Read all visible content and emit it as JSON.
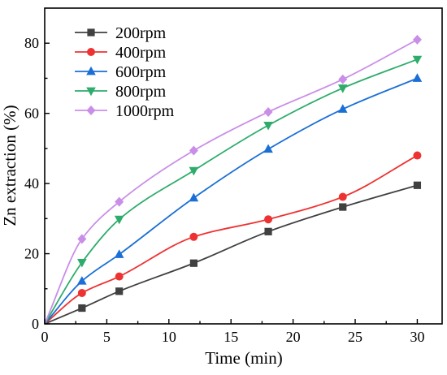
{
  "chart_data": {
    "type": "line",
    "xlabel": "Time (min)",
    "ylabel": "Zn extraction (%)",
    "xlim": [
      0,
      32
    ],
    "ylim": [
      0,
      90
    ],
    "xticks": [
      0,
      5,
      10,
      15,
      20,
      25,
      30
    ],
    "yticks": [
      0,
      20,
      40,
      60,
      80
    ],
    "grid": false,
    "legend_position": "top-left",
    "x": [
      0,
      3,
      6,
      12,
      18,
      24,
      30
    ],
    "series": [
      {
        "name": "200rpm",
        "color": "#404040",
        "marker": "square",
        "values": [
          0,
          4.5,
          9.3,
          17.3,
          26.3,
          33.3,
          39.5
        ]
      },
      {
        "name": "400rpm",
        "color": "#ee3232",
        "marker": "circle",
        "values": [
          0,
          8.8,
          13.5,
          24.8,
          29.8,
          36.2,
          48.0
        ]
      },
      {
        "name": "600rpm",
        "color": "#1a6fd6",
        "marker": "triangle-up",
        "values": [
          0,
          12.2,
          19.8,
          35.9,
          49.8,
          61.2,
          70.0
        ]
      },
      {
        "name": "800rpm",
        "color": "#2eac6b",
        "marker": "triangle-down",
        "values": [
          0,
          17.5,
          29.8,
          43.7,
          56.6,
          67.2,
          75.4
        ]
      },
      {
        "name": "1000rpm",
        "color": "#c98ee8",
        "marker": "diamond",
        "values": [
          0,
          24.2,
          34.8,
          49.4,
          60.4,
          69.7,
          81.0
        ]
      }
    ]
  }
}
